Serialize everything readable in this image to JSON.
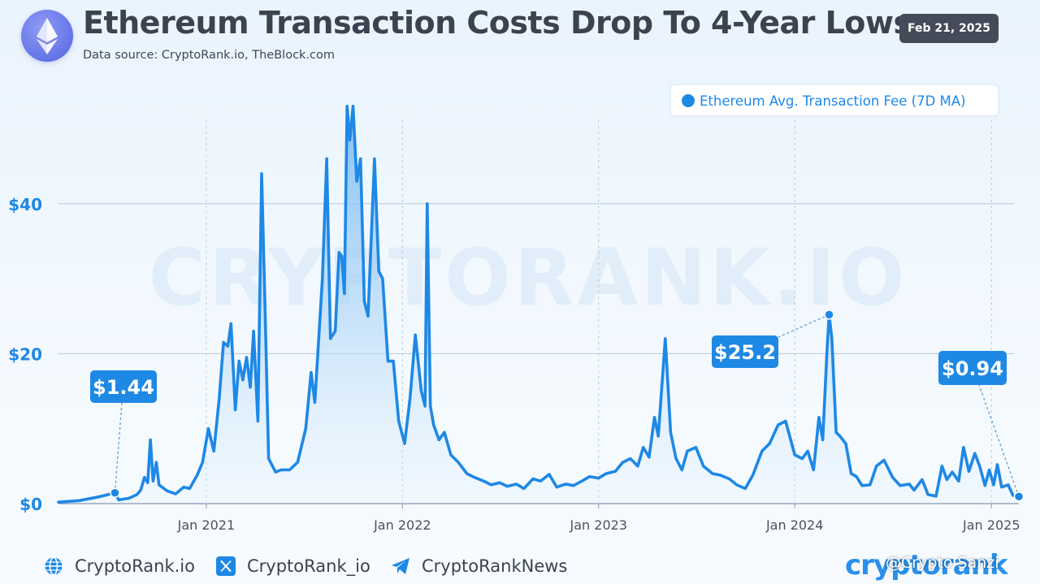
{
  "header": {
    "title": "Ethereum Transaction Costs Drop To 4-Year Lows",
    "subtitle": "Data source: CryptoRank.io, TheBlock.com",
    "date": "Feb 21, 2025",
    "logo_icon": "ethereum-icon"
  },
  "colors": {
    "line": "#1e88e5",
    "accent": "#1e88e5",
    "title": "#3b4250",
    "badge": "#454b58"
  },
  "chart_data": {
    "type": "area",
    "watermark": "CRYPTORANK.IO",
    "series": [
      {
        "name": "Ethereum Avg. Transaction Fee (7D MA)"
      }
    ],
    "legend_position": "top-right",
    "grid": true,
    "ylim": [
      0,
      52
    ],
    "xlim": [
      "2020-04-01",
      "2025-02-21"
    ],
    "yticks": [
      {
        "value": 0,
        "label": "$0"
      },
      {
        "value": 20,
        "label": "$20"
      },
      {
        "value": 40,
        "label": "$40"
      }
    ],
    "xticks": [
      {
        "date": "2021-01-01",
        "label": "Jan 2021"
      },
      {
        "date": "2022-01-01",
        "label": "Jan 2022"
      },
      {
        "date": "2023-01-01",
        "label": "Jan 2023"
      },
      {
        "date": "2024-01-01",
        "label": "Jan 2024"
      },
      {
        "date": "2025-01-01",
        "label": "Jan 2025"
      }
    ],
    "annotations": [
      {
        "label": "$1.44",
        "date": "2020-07-15",
        "value": 1.44
      },
      {
        "label": "$25.2",
        "date": "2024-03-05",
        "value": 25.2
      },
      {
        "label": "$0.94",
        "date": "2025-02-21",
        "value": 0.94
      }
    ],
    "points": [
      [
        "2020-04-01",
        0.2
      ],
      [
        "2020-05-10",
        0.4
      ],
      [
        "2020-06-15",
        0.9
      ],
      [
        "2020-07-15",
        1.44
      ],
      [
        "2020-07-22",
        0.5
      ],
      [
        "2020-08-10",
        0.7
      ],
      [
        "2020-08-25",
        1.2
      ],
      [
        "2020-09-01",
        1.8
      ],
      [
        "2020-09-08",
        3.5
      ],
      [
        "2020-09-14",
        2.8
      ],
      [
        "2020-09-19",
        8.5
      ],
      [
        "2020-09-24",
        3.0
      ],
      [
        "2020-09-30",
        5.5
      ],
      [
        "2020-10-05",
        2.5
      ],
      [
        "2020-10-20",
        1.7
      ],
      [
        "2020-11-05",
        1.3
      ],
      [
        "2020-11-20",
        2.2
      ],
      [
        "2020-12-01",
        2.0
      ],
      [
        "2020-12-15",
        3.8
      ],
      [
        "2020-12-25",
        5.5
      ],
      [
        "2021-01-05",
        10.0
      ],
      [
        "2021-01-15",
        7.0
      ],
      [
        "2021-01-25",
        14.0
      ],
      [
        "2021-02-02",
        21.5
      ],
      [
        "2021-02-10",
        21.0
      ],
      [
        "2021-02-16",
        24.0
      ],
      [
        "2021-02-24",
        12.5
      ],
      [
        "2021-03-03",
        19.0
      ],
      [
        "2021-03-10",
        16.5
      ],
      [
        "2021-03-17",
        19.5
      ],
      [
        "2021-03-24",
        15.5
      ],
      [
        "2021-03-30",
        23.0
      ],
      [
        "2021-04-07",
        11.0
      ],
      [
        "2021-04-14",
        44.0
      ],
      [
        "2021-04-20",
        27.0
      ],
      [
        "2021-04-27",
        6.0
      ],
      [
        "2021-05-10",
        4.2
      ],
      [
        "2021-05-20",
        4.5
      ],
      [
        "2021-06-05",
        4.5
      ],
      [
        "2021-06-20",
        5.5
      ],
      [
        "2021-07-05",
        10.0
      ],
      [
        "2021-07-15",
        17.5
      ],
      [
        "2021-07-22",
        13.5
      ],
      [
        "2021-08-05",
        30.0
      ],
      [
        "2021-08-13",
        46.0
      ],
      [
        "2021-08-20",
        22.0
      ],
      [
        "2021-08-29",
        23.0
      ],
      [
        "2021-09-05",
        33.5
      ],
      [
        "2021-09-10",
        33.0
      ],
      [
        "2021-09-15",
        28.0
      ],
      [
        "2021-09-20",
        53.0
      ],
      [
        "2021-09-25",
        48.5
      ],
      [
        "2021-10-01",
        53.0
      ],
      [
        "2021-10-08",
        43.0
      ],
      [
        "2021-10-15",
        46.0
      ],
      [
        "2021-10-22",
        27.0
      ],
      [
        "2021-10-29",
        25.0
      ],
      [
        "2021-11-10",
        46.0
      ],
      [
        "2021-11-18",
        31.0
      ],
      [
        "2021-11-25",
        30.0
      ],
      [
        "2021-12-05",
        19.0
      ],
      [
        "2021-12-15",
        19.0
      ],
      [
        "2021-12-25",
        11.0
      ],
      [
        "2022-01-05",
        8.0
      ],
      [
        "2022-01-15",
        14.0
      ],
      [
        "2022-01-25",
        22.5
      ],
      [
        "2022-02-05",
        15.0
      ],
      [
        "2022-02-12",
        13.0
      ],
      [
        "2022-02-16",
        40.0
      ],
      [
        "2022-02-22",
        13.0
      ],
      [
        "2022-02-28",
        10.5
      ],
      [
        "2022-03-10",
        8.5
      ],
      [
        "2022-03-20",
        9.5
      ],
      [
        "2022-04-01",
        6.5
      ],
      [
        "2022-04-15",
        5.5
      ],
      [
        "2022-05-01",
        4.0
      ],
      [
        "2022-05-15",
        3.5
      ],
      [
        "2022-06-01",
        3.0
      ],
      [
        "2022-06-15",
        2.5
      ],
      [
        "2022-07-01",
        2.8
      ],
      [
        "2022-07-15",
        2.3
      ],
      [
        "2022-08-01",
        2.6
      ],
      [
        "2022-08-15",
        2.0
      ],
      [
        "2022-09-01",
        3.3
      ],
      [
        "2022-09-15",
        3.0
      ],
      [
        "2022-10-01",
        3.9
      ],
      [
        "2022-10-15",
        2.2
      ],
      [
        "2022-11-01",
        2.6
      ],
      [
        "2022-11-15",
        2.4
      ],
      [
        "2022-12-01",
        3.0
      ],
      [
        "2022-12-15",
        3.6
      ],
      [
        "2023-01-01",
        3.4
      ],
      [
        "2023-01-15",
        4.0
      ],
      [
        "2023-02-01",
        4.3
      ],
      [
        "2023-02-15",
        5.5
      ],
      [
        "2023-03-01",
        6.0
      ],
      [
        "2023-03-15",
        5.0
      ],
      [
        "2023-03-25",
        7.5
      ],
      [
        "2023-04-05",
        6.2
      ],
      [
        "2023-04-15",
        11.5
      ],
      [
        "2023-04-22",
        9.0
      ],
      [
        "2023-05-05",
        22.0
      ],
      [
        "2023-05-15",
        9.5
      ],
      [
        "2023-05-25",
        6.0
      ],
      [
        "2023-06-05",
        4.5
      ],
      [
        "2023-06-15",
        7.0
      ],
      [
        "2023-07-01",
        7.5
      ],
      [
        "2023-07-15",
        5.0
      ],
      [
        "2023-08-01",
        4.0
      ],
      [
        "2023-08-15",
        3.8
      ],
      [
        "2023-09-01",
        3.3
      ],
      [
        "2023-09-15",
        2.5
      ],
      [
        "2023-10-01",
        2.0
      ],
      [
        "2023-10-15",
        3.8
      ],
      [
        "2023-11-01",
        7.0
      ],
      [
        "2023-11-15",
        8.0
      ],
      [
        "2023-12-01",
        10.5
      ],
      [
        "2023-12-15",
        11.0
      ],
      [
        "2024-01-01",
        6.5
      ],
      [
        "2024-01-15",
        6.0
      ],
      [
        "2024-01-25",
        7.0
      ],
      [
        "2024-02-05",
        4.5
      ],
      [
        "2024-02-15",
        11.5
      ],
      [
        "2024-02-22",
        8.5
      ],
      [
        "2024-03-01",
        20.5
      ],
      [
        "2024-03-05",
        25.2
      ],
      [
        "2024-03-10",
        22.0
      ],
      [
        "2024-03-18",
        9.5
      ],
      [
        "2024-03-25",
        9.0
      ],
      [
        "2024-04-05",
        8.0
      ],
      [
        "2024-04-15",
        4.0
      ],
      [
        "2024-04-25",
        3.6
      ],
      [
        "2024-05-05",
        2.4
      ],
      [
        "2024-05-20",
        2.5
      ],
      [
        "2024-06-01",
        5.0
      ],
      [
        "2024-06-15",
        5.8
      ],
      [
        "2024-07-01",
        3.5
      ],
      [
        "2024-07-15",
        2.4
      ],
      [
        "2024-08-01",
        2.6
      ],
      [
        "2024-08-10",
        1.8
      ],
      [
        "2024-08-25",
        3.2
      ],
      [
        "2024-09-05",
        1.2
      ],
      [
        "2024-09-20",
        1.0
      ],
      [
        "2024-10-01",
        5.0
      ],
      [
        "2024-10-10",
        3.2
      ],
      [
        "2024-10-20",
        4.2
      ],
      [
        "2024-11-01",
        3.0
      ],
      [
        "2024-11-10",
        7.5
      ],
      [
        "2024-11-20",
        4.3
      ],
      [
        "2024-12-01",
        6.7
      ],
      [
        "2024-12-10",
        5.0
      ],
      [
        "2024-12-20",
        2.4
      ],
      [
        "2024-12-28",
        4.5
      ],
      [
        "2025-01-05",
        2.5
      ],
      [
        "2025-01-12",
        5.2
      ],
      [
        "2025-01-20",
        2.2
      ],
      [
        "2025-02-01",
        2.5
      ],
      [
        "2025-02-10",
        1.1
      ],
      [
        "2025-02-21",
        0.94
      ]
    ]
  },
  "footer": {
    "items": [
      {
        "icon": "globe-icon",
        "label": "CryptoRank.io"
      },
      {
        "icon": "x-logo-icon",
        "label": "CryptoRank_io"
      },
      {
        "icon": "telegram-icon",
        "label": "CryptoRankNews"
      }
    ],
    "brand": "cryptorank",
    "author": "@Crypto Sanzi"
  }
}
